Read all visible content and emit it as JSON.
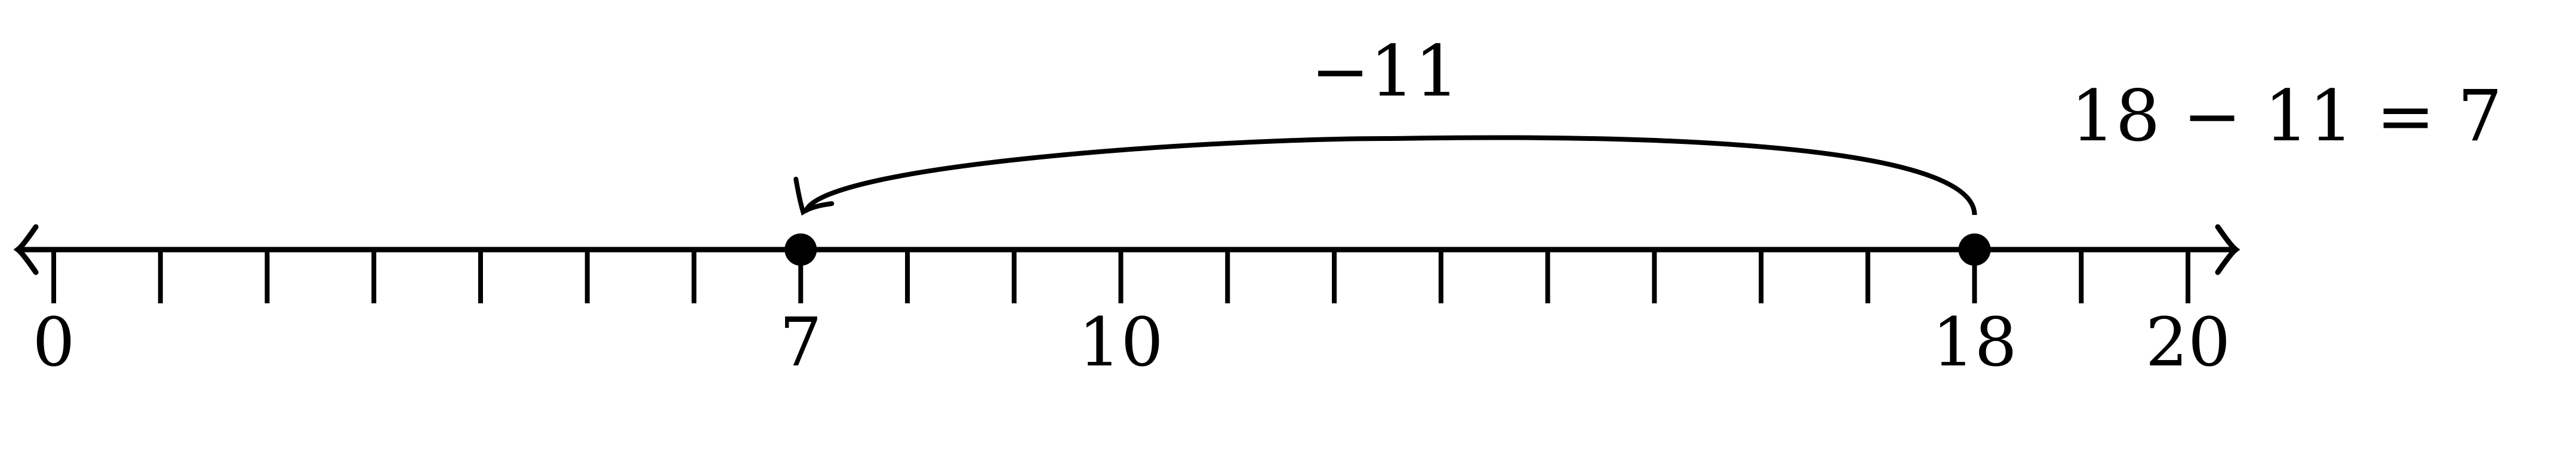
{
  "number_line": {
    "min": 0,
    "max": 20,
    "tick_step": 1,
    "labeled_ticks": [
      {
        "value": 0,
        "label": "0"
      },
      {
        "value": 7,
        "label": "7"
      },
      {
        "value": 10,
        "label": "10"
      },
      {
        "value": 18,
        "label": "18"
      },
      {
        "value": 20,
        "label": "20"
      }
    ],
    "points": [
      7,
      18
    ],
    "jump": {
      "from": 18,
      "to": 7,
      "label": "−11"
    }
  },
  "equation": "18 − 11 = 7",
  "colors": {
    "ink": "#000000",
    "background": "#ffffff"
  }
}
